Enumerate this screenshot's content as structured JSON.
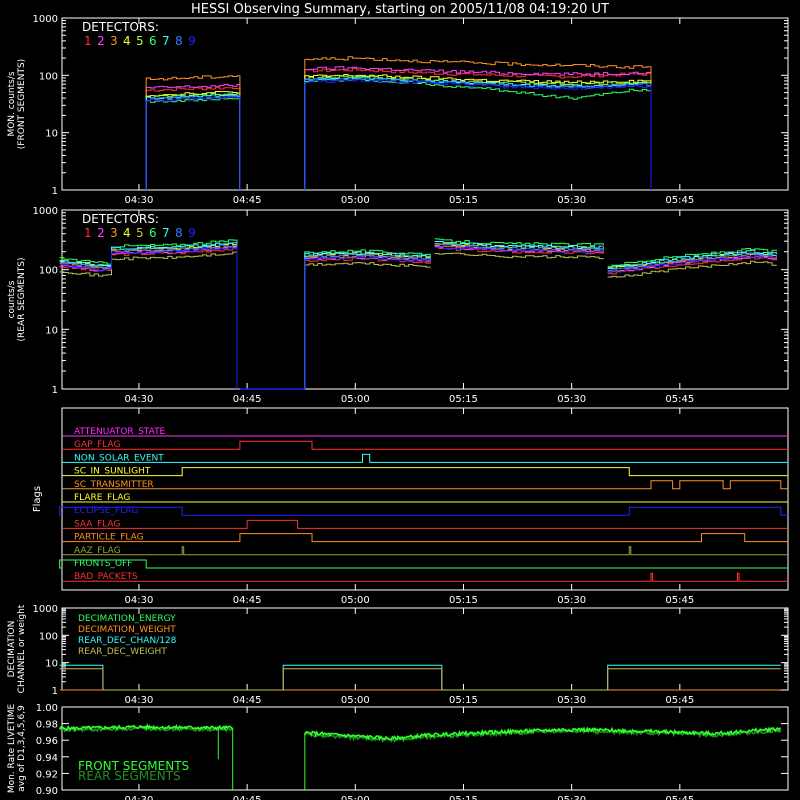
{
  "title": "HESSI Observing Summary, starting on 2005/11/08 04:19:20 UT",
  "time_ticks": [
    "04:30",
    "04:45",
    "05:00",
    "05:15",
    "05:30",
    "05:45"
  ],
  "detector_colors": [
    "#ff3030",
    "#ff40ff",
    "#ff9020",
    "#ffff30",
    "#a0ff30",
    "#30ff60",
    "#30ffff",
    "#3080ff",
    "#2020ff"
  ],
  "detector_colors_rear": [
    "#ff3030",
    "#ff40ff",
    "#ff9020",
    "#ffff30",
    "#c0c050",
    "#30ff60",
    "#30ffff",
    "#3080ff",
    "#2020ff"
  ],
  "chart_data": [
    {
      "id": "front",
      "type": "line",
      "ylabel_lines": [
        "MON. counts/s",
        "(FRONT SEGMENTS)"
      ],
      "yscale": "log",
      "ylim": [
        1,
        1000
      ],
      "ytick_labels": [
        "1",
        "10",
        "100",
        "1000"
      ],
      "legend_title": "DETECTORS:",
      "legend_digits": [
        "1",
        "2",
        "3",
        "4",
        "5",
        "6",
        "7",
        "8",
        "9"
      ],
      "x": [
        "04:31",
        "04:36",
        "04:41",
        "04:44",
        "04:53",
        "05:00",
        "05:10",
        "05:20",
        "05:30",
        "05:38",
        "05:41"
      ],
      "series": [
        {
          "name": "1",
          "values": [
            55,
            58,
            60,
            62,
            120,
            125,
            110,
            100,
            95,
            105,
            105
          ]
        },
        {
          "name": "2",
          "values": [
            60,
            63,
            65,
            68,
            130,
            135,
            120,
            110,
            105,
            110,
            110
          ]
        },
        {
          "name": "3",
          "values": [
            85,
            90,
            95,
            100,
            190,
            200,
            175,
            160,
            150,
            140,
            140
          ]
        },
        {
          "name": "4",
          "values": [
            45,
            48,
            50,
            52,
            95,
            100,
            90,
            80,
            75,
            80,
            80
          ]
        },
        {
          "name": "5",
          "values": [
            42,
            44,
            46,
            48,
            90,
            95,
            85,
            75,
            70,
            75,
            75
          ]
        },
        {
          "name": "6",
          "values": [
            35,
            37,
            38,
            40,
            80,
            85,
            70,
            55,
            40,
            55,
            55
          ]
        },
        {
          "name": "7",
          "values": [
            40,
            42,
            44,
            46,
            85,
            90,
            80,
            70,
            65,
            70,
            70
          ]
        },
        {
          "name": "8",
          "values": [
            38,
            40,
            42,
            44,
            82,
            88,
            78,
            68,
            62,
            68,
            68
          ]
        },
        {
          "name": "9",
          "values": [
            36,
            38,
            40,
            42,
            78,
            84,
            74,
            64,
            58,
            64,
            64
          ]
        }
      ]
    },
    {
      "id": "rear",
      "type": "line",
      "ylabel_lines": [
        "counts/s",
        "(REAR SEGMENTS)"
      ],
      "yscale": "log",
      "ylim": [
        1,
        1000
      ],
      "ytick_labels": [
        "1",
        "10",
        "100",
        "1000"
      ],
      "legend_title": "DETECTORS:",
      "legend_digits": [
        "1",
        "2",
        "3",
        "4",
        "5",
        "6",
        "7",
        "8",
        "9"
      ],
      "segments": [
        {
          "x": [
            "04:19",
            "04:24",
            "04:26",
            "04:26",
            "04:35",
            "04:44"
          ],
          "base": [
            120,
            100,
            100,
            190,
            200,
            240
          ]
        },
        {
          "x": [
            "04:53",
            "05:00",
            "05:05",
            "05:11"
          ],
          "base": [
            150,
            160,
            150,
            140
          ]
        },
        {
          "x": [
            "05:11",
            "05:20",
            "05:35"
          ],
          "base": [
            240,
            210,
            200
          ]
        },
        {
          "x": [
            "05:35",
            "05:45",
            "05:55",
            "05:59"
          ],
          "base": [
            90,
            130,
            170,
            150
          ]
        }
      ],
      "series_factors": [
        {
          "name": "1",
          "factor": 0.95
        },
        {
          "name": "2",
          "factor": 1.0
        },
        {
          "name": "3",
          "factor": 1.05
        },
        {
          "name": "4",
          "factor": 1.15
        },
        {
          "name": "5",
          "factor": 0.8
        },
        {
          "name": "6",
          "factor": 1.3
        },
        {
          "name": "7",
          "factor": 1.2
        },
        {
          "name": "8",
          "factor": 1.1
        },
        {
          "name": "9",
          "factor": 1.0
        }
      ]
    },
    {
      "id": "flags",
      "type": "step",
      "ylabel": "Flags",
      "flags": [
        {
          "name": "ATTENUATOR_STATE",
          "color": "#ff30ff",
          "on": []
        },
        {
          "name": "GAP_FLAG",
          "color": "#ff3030",
          "on": [
            [
              "04:44",
              "04:54"
            ]
          ]
        },
        {
          "name": "NON_SOLAR_EVENT",
          "color": "#30ffff",
          "on": [
            [
              "05:01",
              "05:02"
            ]
          ]
        },
        {
          "name": "SC_IN_SUNLIGHT",
          "color": "#ffff30",
          "on": [
            [
              "04:36",
              "05:38"
            ]
          ]
        },
        {
          "name": "SC_TRANSMITTER",
          "color": "#ff9020",
          "on": [
            [
              "05:41",
              "05:44"
            ],
            [
              "05:45",
              "05:51"
            ],
            [
              "05:52",
              "05:59"
            ]
          ]
        },
        {
          "name": "FLARE_FLAG",
          "color": "#ffff30",
          "on": []
        },
        {
          "name": "ECLIPSE_FLAG",
          "color": "#2020ff",
          "on": [
            [
              "04:19",
              "04:36"
            ],
            [
              "05:38",
              "05:59"
            ]
          ]
        },
        {
          "name": "SAA_FLAG",
          "color": "#ff3030",
          "on": [
            [
              "04:45",
              "04:52"
            ]
          ]
        },
        {
          "name": "PARTICLE_FLAG",
          "color": "#ff9020",
          "on": [
            [
              "04:44",
              "04:54"
            ],
            [
              "05:48",
              "05:54"
            ]
          ]
        },
        {
          "name": "AAZ_FLAG",
          "color": "#a0a030",
          "on": [
            [
              "04:36",
              "04:36"
            ],
            [
              "05:38",
              "05:38"
            ]
          ]
        },
        {
          "name": "FRONTS_OFF",
          "color": "#30ff60",
          "on": [
            [
              "04:19",
              "04:31"
            ]
          ]
        },
        {
          "name": "BAD_PACKETS",
          "color": "#ff3030",
          "on": [
            [
              "05:41",
              "05:41"
            ],
            [
              "05:53",
              "05:53"
            ]
          ]
        }
      ]
    },
    {
      "id": "decimation",
      "type": "step",
      "ylabel_lines": [
        "DECIMATION",
        "CHANNEL or weight"
      ],
      "yscale": "log",
      "ylim": [
        1,
        1000
      ],
      "ytick_labels": [
        "1",
        "10",
        "100",
        "1000"
      ],
      "series": [
        {
          "name": "DECIMATION_ENERGY",
          "color": "#30ff60",
          "x": [],
          "values": []
        },
        {
          "name": "DECIMATION_WEIGHT",
          "color": "#ff9020",
          "x": [
            "04:19",
            "05:59"
          ],
          "values": [
            1,
            1
          ]
        },
        {
          "name": "REAR_DEC_CHAN/128",
          "color": "#30ffff",
          "x": [
            "04:19",
            "04:25",
            "04:25",
            "04:50",
            "04:50",
            "05:12",
            "05:12",
            "05:35",
            "05:35",
            "05:59"
          ],
          "values": [
            8,
            8,
            1,
            1,
            8,
            8,
            1,
            1,
            8,
            8
          ]
        },
        {
          "name": "REAR_DEC_WEIGHT",
          "color": "#c0c050",
          "x": [
            "04:19",
            "04:25",
            "04:25",
            "04:50",
            "04:50",
            "05:12",
            "05:12",
            "05:35",
            "05:35",
            "05:59"
          ],
          "values": [
            6,
            6,
            1,
            1,
            6,
            6,
            1,
            1,
            6,
            6
          ]
        }
      ]
    },
    {
      "id": "livetime",
      "type": "line",
      "ylabel_lines": [
        "Mon. Rate LIVETIME",
        "avg of D1,3,4,5,6,9"
      ],
      "ylim": [
        0.9,
        1.0
      ],
      "ytick_labels": [
        "0.90",
        "0.92",
        "0.94",
        "0.96",
        "0.98",
        "1.00"
      ],
      "series": [
        {
          "name": "FRONT SEGMENTS",
          "color": "#30ff30",
          "x": [
            "04:19",
            "04:30",
            "04:40",
            "04:43",
            "04:53",
            "05:00",
            "05:05",
            "05:10",
            "05:20",
            "05:30",
            "05:40",
            "05:50",
            "05:59"
          ],
          "values": [
            0.974,
            0.976,
            0.975,
            0.975,
            0.969,
            0.965,
            0.962,
            0.966,
            0.97,
            0.973,
            0.971,
            0.968,
            0.974
          ]
        },
        {
          "name": "REAR SEGMENTS",
          "color": "#209020",
          "x": [
            "04:19",
            "04:30",
            "04:40",
            "04:43",
            "04:53",
            "05:00",
            "05:05",
            "05:10",
            "05:20",
            "05:30",
            "05:40",
            "05:50",
            "05:59"
          ],
          "values": [
            0.972,
            0.974,
            0.973,
            0.973,
            0.967,
            0.963,
            0.96,
            0.964,
            0.968,
            0.971,
            0.969,
            0.966,
            0.972
          ]
        }
      ]
    }
  ]
}
